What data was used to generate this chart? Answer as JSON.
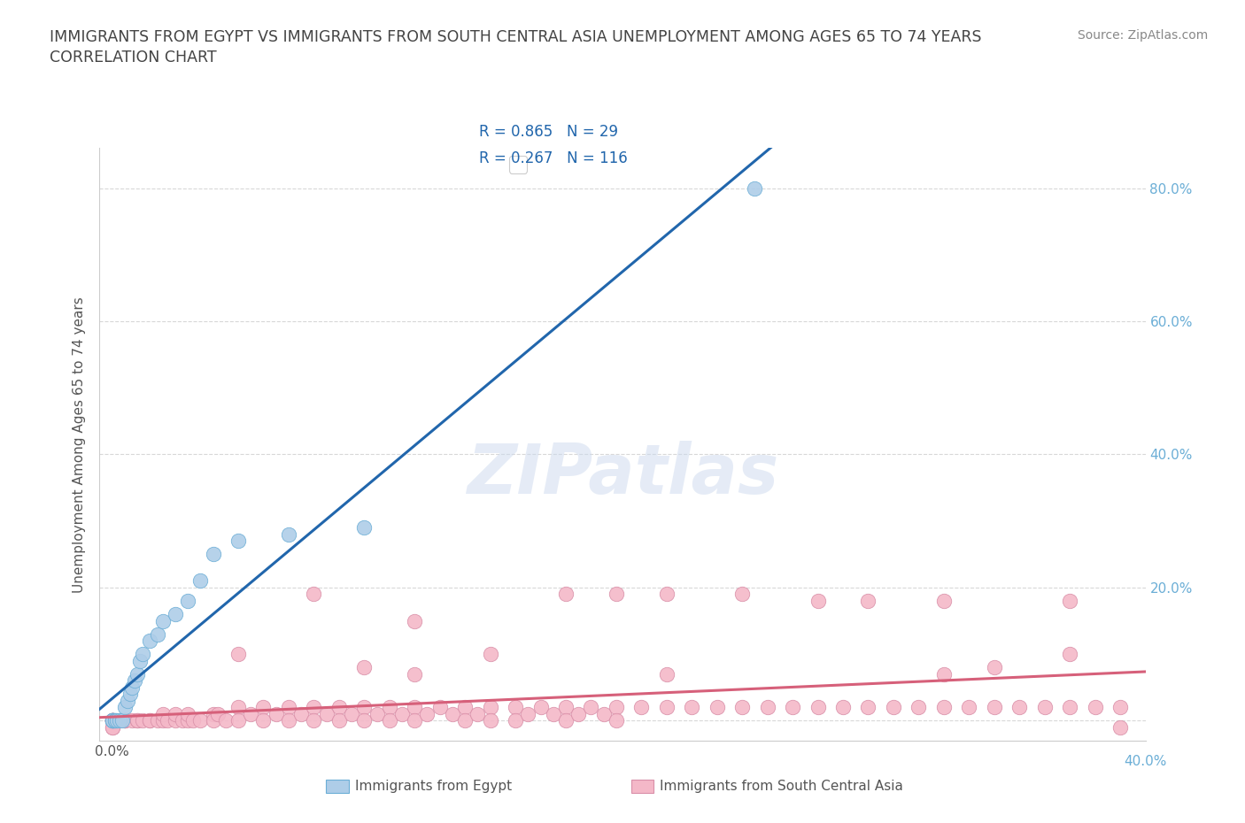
{
  "title_line1": "IMMIGRANTS FROM EGYPT VS IMMIGRANTS FROM SOUTH CENTRAL ASIA UNEMPLOYMENT AMONG AGES 65 TO 74 YEARS",
  "title_line2": "CORRELATION CHART",
  "source": "Source: ZipAtlas.com",
  "ylabel": "Unemployment Among Ages 65 to 74 years",
  "egypt_color": "#aecde8",
  "egypt_edge": "#6baed6",
  "sca_color": "#f4b8c8",
  "sca_edge": "#d98fa8",
  "egypt_R": 0.865,
  "egypt_N": 29,
  "sca_R": 0.267,
  "sca_N": 116,
  "watermark": "ZIPatlas",
  "background_color": "#ffffff",
  "grid_color": "#d8d8d8",
  "xlim": [
    -0.005,
    0.41
  ],
  "ylim": [
    -0.03,
    0.86
  ],
  "right_tick_color": "#6baed6",
  "egypt_x": [
    0.0,
    0.0,
    0.0,
    0.0,
    0.0,
    0.001,
    0.001,
    0.002,
    0.003,
    0.004,
    0.005,
    0.006,
    0.007,
    0.008,
    0.009,
    0.01,
    0.011,
    0.012,
    0.015,
    0.018,
    0.02,
    0.025,
    0.03,
    0.035,
    0.04,
    0.05,
    0.07,
    0.1,
    0.255
  ],
  "egypt_y": [
    0.0,
    0.0,
    0.0,
    0.0,
    0.0,
    0.0,
    0.0,
    0.0,
    0.0,
    0.0,
    0.02,
    0.03,
    0.04,
    0.05,
    0.06,
    0.07,
    0.09,
    0.1,
    0.12,
    0.13,
    0.15,
    0.16,
    0.18,
    0.21,
    0.25,
    0.27,
    0.28,
    0.29,
    0.8
  ],
  "sca_x": [
    0.0,
    0.0,
    0.0,
    0.0,
    0.0,
    0.0,
    0.0,
    0.0,
    0.0,
    0.0,
    0.005,
    0.005,
    0.005,
    0.008,
    0.01,
    0.01,
    0.012,
    0.015,
    0.015,
    0.018,
    0.02,
    0.02,
    0.022,
    0.025,
    0.025,
    0.028,
    0.03,
    0.03,
    0.032,
    0.035,
    0.04,
    0.04,
    0.042,
    0.045,
    0.05,
    0.05,
    0.055,
    0.06,
    0.06,
    0.065,
    0.07,
    0.07,
    0.075,
    0.08,
    0.08,
    0.085,
    0.09,
    0.09,
    0.095,
    0.1,
    0.1,
    0.105,
    0.11,
    0.11,
    0.115,
    0.12,
    0.12,
    0.125,
    0.13,
    0.135,
    0.14,
    0.14,
    0.145,
    0.15,
    0.15,
    0.16,
    0.16,
    0.165,
    0.17,
    0.175,
    0.18,
    0.18,
    0.185,
    0.19,
    0.195,
    0.2,
    0.2,
    0.21,
    0.22,
    0.23,
    0.24,
    0.25,
    0.26,
    0.27,
    0.28,
    0.29,
    0.3,
    0.31,
    0.32,
    0.33,
    0.34,
    0.35,
    0.36,
    0.37,
    0.38,
    0.39,
    0.4,
    0.4,
    0.38,
    0.35,
    0.3,
    0.25,
    0.2,
    0.15,
    0.1,
    0.05,
    0.08,
    0.12,
    0.18,
    0.22,
    0.28,
    0.33,
    0.38,
    0.12,
    0.22,
    0.33
  ],
  "sca_y": [
    0.0,
    0.0,
    0.0,
    0.0,
    0.0,
    0.0,
    0.0,
    0.0,
    -0.01,
    -0.01,
    0.0,
    0.0,
    0.0,
    0.0,
    0.0,
    0.0,
    0.0,
    0.0,
    0.0,
    0.0,
    0.0,
    0.01,
    0.0,
    0.0,
    0.01,
    0.0,
    0.0,
    0.01,
    0.0,
    0.0,
    0.01,
    0.0,
    0.01,
    0.0,
    0.02,
    0.0,
    0.01,
    0.02,
    0.0,
    0.01,
    0.02,
    0.0,
    0.01,
    0.02,
    0.0,
    0.01,
    0.02,
    0.0,
    0.01,
    0.02,
    0.0,
    0.01,
    0.02,
    0.0,
    0.01,
    0.02,
    0.0,
    0.01,
    0.02,
    0.01,
    0.02,
    0.0,
    0.01,
    0.02,
    0.0,
    0.02,
    0.0,
    0.01,
    0.02,
    0.01,
    0.02,
    0.0,
    0.01,
    0.02,
    0.01,
    0.02,
    0.0,
    0.02,
    0.02,
    0.02,
    0.02,
    0.02,
    0.02,
    0.02,
    0.02,
    0.02,
    0.02,
    0.02,
    0.02,
    0.02,
    0.02,
    0.02,
    0.02,
    0.02,
    0.02,
    0.02,
    0.02,
    -0.01,
    0.1,
    0.08,
    0.18,
    0.19,
    0.19,
    0.1,
    0.08,
    0.1,
    0.19,
    0.15,
    0.19,
    0.19,
    0.18,
    0.18,
    0.18,
    0.07,
    0.07,
    0.07
  ]
}
